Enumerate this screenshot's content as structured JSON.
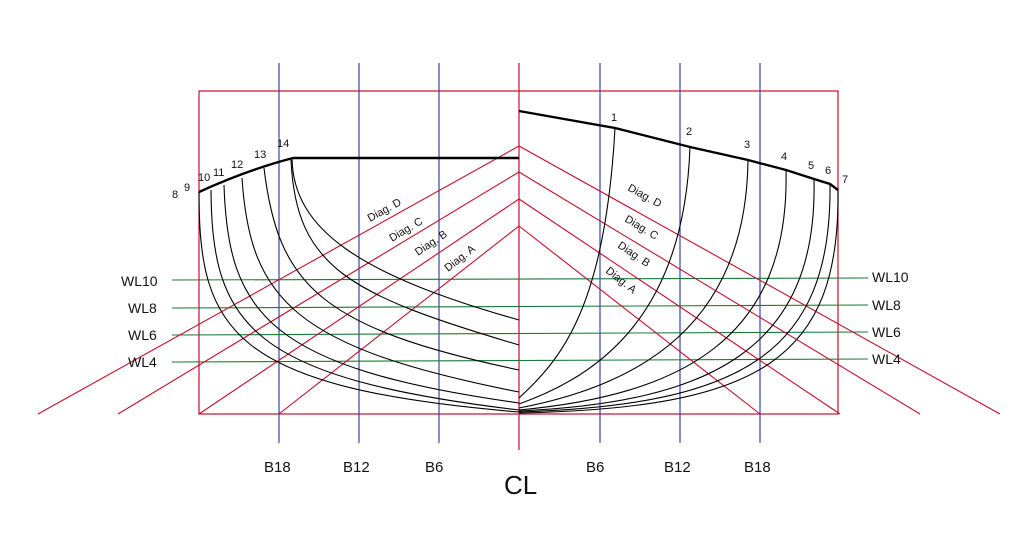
{
  "colors": {
    "frame": "#c0112b",
    "buttock": "#2236a8",
    "waterline": "#1a7a35",
    "station": "#000000",
    "background": "#ffffff"
  },
  "centerline_label": "CL",
  "buttock_labels": {
    "left": [
      "B18",
      "B12",
      "B6"
    ],
    "right": [
      "B6",
      "B12",
      "B18"
    ]
  },
  "waterline_labels": [
    "WL10",
    "WL8",
    "WL6",
    "WL4"
  ],
  "diagonal_labels": [
    "Diag. D",
    "Diag. C",
    "Diag. B",
    "Diag. A"
  ],
  "station_labels": {
    "stern_side": [
      "8",
      "9",
      "10",
      "11",
      "12",
      "13",
      "14"
    ],
    "bow_side": [
      "1",
      "2",
      "3",
      "4",
      "5",
      "6",
      "7"
    ]
  }
}
